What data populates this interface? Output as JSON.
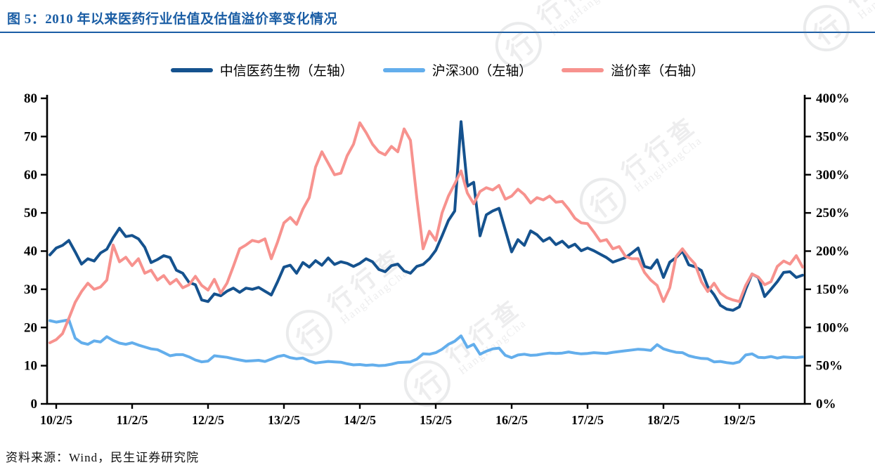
{
  "title": "图 5：2010 年以来医药行业估值及估值溢价率变化情况",
  "source": "资料来源：Wind，民生证券研究院",
  "watermark": {
    "text": "行行查",
    "subtext": "HangHangCha",
    "logo_glyph": "行"
  },
  "colors": {
    "title_blue": "#1b5ea5",
    "axis_black": "#000000",
    "series_dark_blue": "#15528e",
    "series_light_blue": "#63aeec",
    "series_pink": "#f7928e"
  },
  "legend": [
    {
      "label": "中信医药生物（左轴）",
      "color": "#15528e"
    },
    {
      "label": "沪深300（左轴）",
      "color": "#63aeec"
    },
    {
      "label": "溢价率（右轴）",
      "color": "#f7928e"
    }
  ],
  "chart_data": {
    "type": "line",
    "title": "2010 年以来医药行业估值及估值溢价率变化情况",
    "x_interval": "monthly",
    "x_start": "2010-01",
    "x_end": "2019-12",
    "x_tick_labels": [
      "10/2/5",
      "11/2/5",
      "12/2/5",
      "13/2/5",
      "14/2/5",
      "15/2/5",
      "16/2/5",
      "17/2/5",
      "18/2/5",
      "19/2/5"
    ],
    "left_axis": {
      "min": 0,
      "max": 80,
      "tick_values": [
        0,
        10,
        20,
        30,
        40,
        50,
        60,
        70,
        80
      ],
      "tick_labels": [
        "0",
        "10",
        "20",
        "30",
        "40",
        "50",
        "60",
        "70",
        "80"
      ]
    },
    "right_axis": {
      "min": 0,
      "max": 400,
      "unit": "%",
      "tick_values": [
        0,
        50,
        100,
        150,
        200,
        250,
        300,
        350,
        400
      ],
      "tick_labels": [
        "0%",
        "50%",
        "100%",
        "150%",
        "200%",
        "250%",
        "300%",
        "350%",
        "400%"
      ]
    },
    "grid": false,
    "legend_position": "top",
    "series": [
      {
        "name": "中信医药生物（左轴）",
        "axis": "left",
        "color": "#15528e",
        "values": [
          39.0,
          40.8,
          41.5,
          42.8,
          39.8,
          36.6,
          38.0,
          37.4,
          39.5,
          40.5,
          43.5,
          46.0,
          43.8,
          44.1,
          43.2,
          41.0,
          37.0,
          37.8,
          38.8,
          38.3,
          35.0,
          34.2,
          31.8,
          31.2,
          27.2,
          26.8,
          28.8,
          28.3,
          29.5,
          30.3,
          29.2,
          30.3,
          30.0,
          30.5,
          29.5,
          28.5,
          32.0,
          35.8,
          36.3,
          34.2,
          37.0,
          35.8,
          37.5,
          36.3,
          38.2,
          36.5,
          37.2,
          36.8,
          36.0,
          36.8,
          38.0,
          37.2,
          35.2,
          34.6,
          36.2,
          36.6,
          34.8,
          34.2,
          36.0,
          36.5,
          38.0,
          40.2,
          44.0,
          48.0,
          50.5,
          73.9,
          57.0,
          58.0,
          44.0,
          49.5,
          50.5,
          51.2,
          45.5,
          39.8,
          43.0,
          41.5,
          45.3,
          44.3,
          42.6,
          43.5,
          41.7,
          42.6,
          41.0,
          41.8,
          40.1,
          40.8,
          40.1,
          39.2,
          38.3,
          37.1,
          37.7,
          38.3,
          39.5,
          40.8,
          36.0,
          35.5,
          37.7,
          33.1,
          37.1,
          38.3,
          40.0,
          36.4,
          35.9,
          34.9,
          30.7,
          28.6,
          25.8,
          24.8,
          24.5,
          25.4,
          30.0,
          34.0,
          33.1,
          28.1,
          30.0,
          32.0,
          34.4,
          34.6,
          33.1,
          33.7
        ]
      },
      {
        "name": "沪深300（左轴）",
        "axis": "left",
        "color": "#63aeec",
        "values": [
          21.8,
          21.4,
          21.7,
          22.0,
          17.2,
          16.0,
          15.6,
          16.5,
          16.2,
          17.6,
          16.6,
          15.9,
          15.6,
          16.0,
          15.4,
          14.9,
          14.4,
          14.2,
          13.4,
          12.6,
          12.9,
          12.9,
          12.3,
          11.5,
          11.0,
          11.2,
          12.6,
          12.4,
          12.2,
          11.8,
          11.5,
          11.2,
          11.3,
          11.4,
          11.1,
          11.7,
          12.4,
          12.7,
          12.1,
          11.8,
          12.0,
          11.2,
          10.7,
          10.9,
          11.1,
          11.0,
          10.9,
          10.5,
          10.2,
          10.3,
          10.1,
          10.2,
          10.0,
          10.1,
          10.4,
          10.8,
          10.9,
          11.0,
          11.7,
          13.1,
          13.0,
          13.4,
          14.3,
          15.6,
          16.4,
          17.8,
          14.8,
          15.6,
          13.0,
          13.8,
          14.4,
          14.6,
          12.7,
          12.1,
          12.8,
          13.0,
          12.7,
          12.8,
          13.1,
          13.3,
          13.2,
          13.3,
          13.6,
          13.3,
          13.1,
          13.2,
          13.4,
          13.3,
          13.2,
          13.5,
          13.7,
          13.9,
          14.1,
          14.3,
          14.2,
          14.0,
          15.5,
          14.4,
          13.9,
          13.5,
          13.4,
          12.6,
          12.2,
          11.9,
          11.8,
          11.0,
          11.1,
          10.8,
          10.6,
          11.0,
          12.8,
          13.1,
          12.2,
          12.1,
          12.4,
          12.0,
          12.3,
          12.2,
          12.1,
          12.3
        ]
      },
      {
        "name": "溢价率（右轴）",
        "axis": "right",
        "unit": "%",
        "color": "#f7928e",
        "values": [
          80,
          84,
          92,
          112,
          133,
          147,
          158,
          150,
          153,
          162,
          208,
          186,
          192,
          181,
          190,
          171,
          175,
          162,
          168,
          157,
          163,
          152,
          156,
          167,
          155,
          149,
          163,
          145,
          158,
          180,
          203,
          208,
          214,
          212,
          216,
          190,
          212,
          237,
          244,
          235,
          255,
          270,
          310,
          330,
          315,
          300,
          302,
          325,
          340,
          368,
          355,
          340,
          330,
          326,
          337,
          330,
          360,
          345,
          270,
          203,
          226,
          214,
          250,
          272,
          288,
          305,
          276,
          262,
          278,
          283,
          280,
          286,
          268,
          272,
          281,
          274,
          263,
          270,
          267,
          272,
          264,
          265,
          255,
          243,
          237,
          236,
          225,
          213,
          215,
          203,
          206,
          193,
          190,
          190,
          172,
          162,
          155,
          134,
          152,
          193,
          203,
          192,
          183,
          160,
          147,
          158,
          145,
          139,
          136,
          134,
          155,
          170,
          166,
          156,
          160,
          180,
          187,
          183,
          194,
          179
        ]
      }
    ]
  }
}
